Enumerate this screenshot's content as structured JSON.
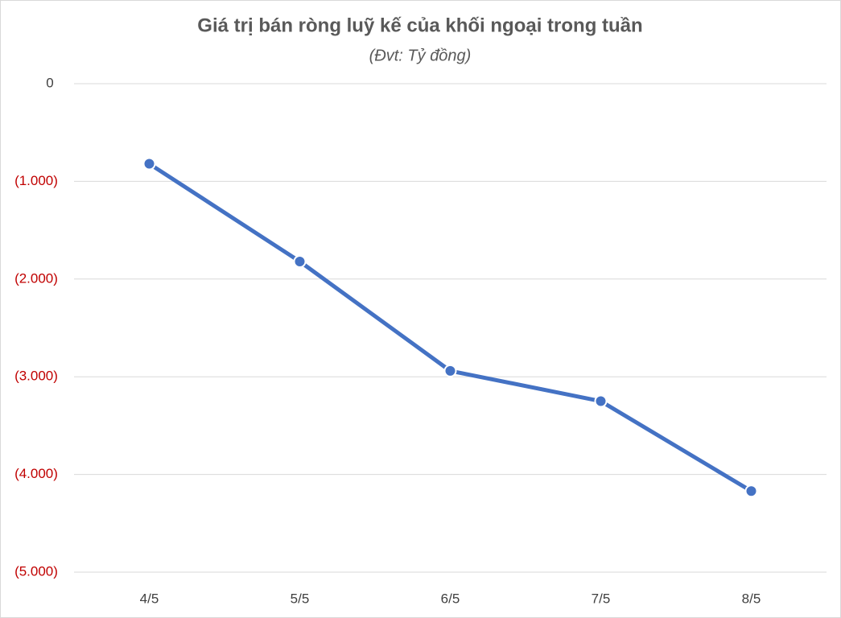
{
  "chart_data": {
    "type": "line",
    "title": "Giá trị bán ròng luỹ kế của khối ngoại trong tuần",
    "subtitle": "(Đvt: Tỷ đồng)",
    "categories": [
      "4/5",
      "5/5",
      "6/5",
      "7/5",
      "8/5"
    ],
    "series": [
      {
        "name": "Giá trị bán ròng luỹ kế",
        "color": "#4472c4",
        "values": [
          -820,
          -1820,
          -2940,
          -3250,
          -4170
        ]
      }
    ],
    "ylim": [
      -5000,
      0
    ],
    "yticks": [
      0,
      {
        "value": -1000,
        "label": "(1.000)"
      },
      {
        "value": -2000,
        "label": "(2.000)"
      },
      {
        "value": -3000,
        "label": "(3.000)"
      },
      {
        "value": -4000,
        "label": "(4.000)"
      },
      {
        "value": -5000,
        "label": "(5.000)"
      }
    ],
    "grid": true,
    "negative_tick_color": "#c00000"
  }
}
